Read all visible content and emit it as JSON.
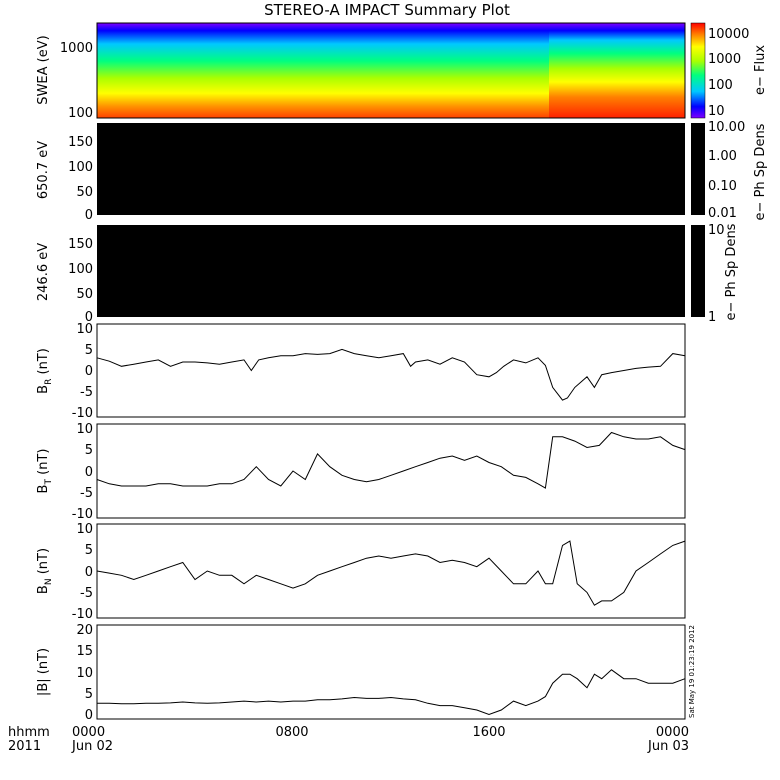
{
  "title": "STEREO-A IMPACT Summary Plot",
  "timestamp": "Sat May 19 01:23:19 2012",
  "x_labels": [
    {
      "top": "hhmm",
      "bottom": "2011"
    },
    {
      "top": "0000",
      "bottom": "Jun 02"
    },
    {
      "top": "0800",
      "bottom": ""
    },
    {
      "top": "1600",
      "bottom": ""
    },
    {
      "top": "0000",
      "bottom": "Jun 03"
    }
  ],
  "panels": {
    "swea": {
      "ylabel": "SWEA (eV)",
      "yticks": [
        "1000",
        "100"
      ],
      "cbar_label": "e− Flux",
      "cbar_ticks": [
        "10000",
        "1000",
        "100",
        "10"
      ]
    },
    "e650": {
      "ylabel": "650.7 eV",
      "yticks": [
        "150",
        "100",
        "50",
        "0"
      ],
      "cbar_label": "e− Ph Sp Dens",
      "cbar_ticks": [
        "10.00",
        "1.00",
        "0.10",
        "0.01"
      ]
    },
    "e246": {
      "ylabel": "246.6 eV",
      "yticks": [
        "150",
        "100",
        "50",
        "0"
      ],
      "cbar_label": "e− Ph Sp Dens",
      "cbar_ticks": [
        "10",
        "1"
      ]
    },
    "br": {
      "ylabel_main": "B",
      "ylabel_sub": "R",
      "ylabel_unit": " (nT)",
      "yticks": [
        "10",
        "5",
        "0",
        "-5",
        "-10"
      ]
    },
    "bt": {
      "ylabel_main": "B",
      "ylabel_sub": "T",
      "ylabel_unit": " (nT)",
      "yticks": [
        "10",
        "5",
        "0",
        "-5",
        "-10"
      ]
    },
    "bn": {
      "ylabel_main": "B",
      "ylabel_sub": "N",
      "ylabel_unit": " (nT)",
      "yticks": [
        "10",
        "5",
        "0",
        "-5",
        "-10"
      ]
    },
    "bmag": {
      "ylabel": "|B| (nT)",
      "yticks": [
        "20",
        "15",
        "10",
        "5",
        "0"
      ]
    }
  },
  "colors": {
    "frame": "#000000",
    "line": "#000000",
    "blank_panel": "#000000"
  },
  "chart_data": [
    {
      "type": "heatmap",
      "name": "",
      "x_range_hours": [
        0,
        24
      ],
      "ylabel": "SWEA (eV)",
      "y_scale": "log",
      "ylim": [
        95,
        2000
      ],
      "colorbar": {
        "label": "e− Flux",
        "scale": "log",
        "range": [
          10,
          20000
        ],
        "colormap": "rainbow"
      },
      "flux_increase_after_hour": 18.2
    },
    {
      "type": "heatmap",
      "ylabel": "650.7 eV",
      "ylim": [
        0,
        180
      ],
      "colorbar": {
        "label": "e− Ph Sp Dens",
        "scale": "log",
        "range": [
          0.01,
          10
        ]
      },
      "fill": "black"
    },
    {
      "type": "heatmap",
      "ylabel": "246.6 eV",
      "ylim": [
        0,
        180
      ],
      "colorbar": {
        "label": "e− Ph Sp Dens",
        "scale": "log",
        "range": [
          1,
          10
        ]
      },
      "fill": "black"
    },
    {
      "type": "line",
      "ylabel": "B_R (nT)",
      "ylim": [
        -11,
        11
      ],
      "x_hours": [
        0,
        0.5,
        1,
        1.5,
        2,
        2.5,
        3,
        3.5,
        4,
        4.5,
        5,
        5.5,
        6,
        6.3,
        6.6,
        7,
        7.5,
        8,
        8.5,
        9,
        9.5,
        10,
        10.5,
        11,
        11.5,
        12,
        12.5,
        12.8,
        13,
        13.5,
        14,
        14.5,
        15,
        15.5,
        16,
        16.3,
        16.6,
        17,
        17.5,
        18,
        18.3,
        18.6,
        19,
        19.2,
        19.5,
        20,
        20.3,
        20.6,
        21,
        21.5,
        22,
        22.5,
        23,
        23.5,
        24
      ],
      "values": [
        3,
        2.2,
        1,
        1.5,
        2,
        2.5,
        1,
        2,
        2,
        1.8,
        1.5,
        2,
        2.5,
        0,
        2.5,
        3,
        3.5,
        3.5,
        4,
        3.8,
        4,
        5,
        4,
        3.5,
        3,
        3.5,
        4,
        1,
        2,
        2.5,
        1.5,
        3,
        2,
        -1,
        -1.5,
        -0.5,
        1,
        2.5,
        1.8,
        3,
        1.2,
        -4,
        -7,
        -6.5,
        -4,
        -1.5,
        -4,
        -1,
        -0.5,
        0,
        0.5,
        0.8,
        1,
        4,
        3.5
      ]
    },
    {
      "type": "line",
      "ylabel": "B_T (nT)",
      "ylim": [
        -11,
        11
      ],
      "x_hours": [
        0,
        0.5,
        1,
        1.5,
        2,
        2.5,
        3,
        3.5,
        4,
        4.5,
        5,
        5.5,
        6,
        6.5,
        7,
        7.5,
        8,
        8.5,
        9,
        9.5,
        10,
        10.5,
        11,
        11.5,
        12,
        12.5,
        13,
        13.5,
        14,
        14.5,
        15,
        15.5,
        16,
        16.5,
        17,
        17.5,
        18,
        18.3,
        18.6,
        19,
        19.5,
        20,
        20.5,
        21,
        21.5,
        22,
        22.5,
        23,
        23.5,
        24
      ],
      "values": [
        -2,
        -3,
        -3.5,
        -3.5,
        -3.5,
        -3,
        -3,
        -3.5,
        -3.5,
        -3.5,
        -3,
        -3,
        -2,
        1,
        -2,
        -3.5,
        0,
        -2,
        4,
        1,
        -1,
        -2,
        -2.5,
        -2,
        -1,
        0,
        1,
        2,
        3,
        3.5,
        2.5,
        3.5,
        2,
        1,
        -1,
        -1.5,
        -3,
        -4,
        8,
        8,
        7,
        5.5,
        6,
        9,
        8,
        7.5,
        7.5,
        8,
        6,
        5
      ]
    },
    {
      "type": "line",
      "ylabel": "B_N (nT)",
      "ylim": [
        -11,
        11
      ],
      "x_hours": [
        0,
        0.5,
        1,
        1.5,
        2,
        2.5,
        3,
        3.5,
        4,
        4.5,
        5,
        5.5,
        6,
        6.5,
        7,
        7.5,
        8,
        8.5,
        9,
        9.5,
        10,
        10.5,
        11,
        11.5,
        12,
        12.5,
        13,
        13.5,
        14,
        14.5,
        15,
        15.5,
        16,
        16.5,
        17,
        17.5,
        18,
        18.3,
        18.6,
        19,
        19.3,
        19.6,
        20,
        20.3,
        20.6,
        21,
        21.5,
        22,
        22.5,
        23,
        23.5,
        24
      ],
      "values": [
        0,
        -0.5,
        -1,
        -2,
        -1,
        0,
        1,
        2,
        -2,
        0,
        -1,
        -1,
        -3,
        -1,
        -2,
        -3,
        -4,
        -3,
        -1,
        0,
        1,
        2,
        3,
        3.5,
        3,
        3.5,
        4,
        3.5,
        2,
        2.5,
        2,
        1,
        3,
        0,
        -3,
        -3,
        0,
        -3,
        -3,
        6,
        7,
        -3,
        -5,
        -8,
        -7,
        -7,
        -5,
        0,
        2,
        4,
        6,
        7
      ]
    },
    {
      "type": "line",
      "ylabel": "|B| (nT)",
      "ylim": [
        0,
        21
      ],
      "x_hours": [
        0,
        0.5,
        1,
        1.5,
        2,
        2.5,
        3,
        3.5,
        4,
        4.5,
        5,
        5.5,
        6,
        6.5,
        7,
        7.5,
        8,
        8.5,
        9,
        9.5,
        10,
        10.5,
        11,
        11.5,
        12,
        12.5,
        13,
        13.5,
        14,
        14.5,
        15,
        15.5,
        16,
        16.5,
        17,
        17.5,
        18,
        18.3,
        18.6,
        19,
        19.3,
        19.6,
        20,
        20.3,
        20.6,
        21,
        21.5,
        22,
        22.5,
        23,
        23.5,
        24
      ],
      "values": [
        3.5,
        3.5,
        3.4,
        3.4,
        3.5,
        3.5,
        3.6,
        3.8,
        3.6,
        3.5,
        3.6,
        3.8,
        4,
        3.8,
        4,
        3.8,
        4,
        4,
        4.3,
        4.3,
        4.5,
        4.8,
        4.6,
        4.6,
        4.8,
        4.5,
        4.3,
        3.5,
        3,
        3,
        2.5,
        2,
        1,
        2,
        4,
        3,
        4,
        5,
        8,
        10,
        10,
        9,
        7,
        10,
        9,
        11,
        9,
        9,
        8,
        8,
        8,
        9
      ]
    }
  ]
}
